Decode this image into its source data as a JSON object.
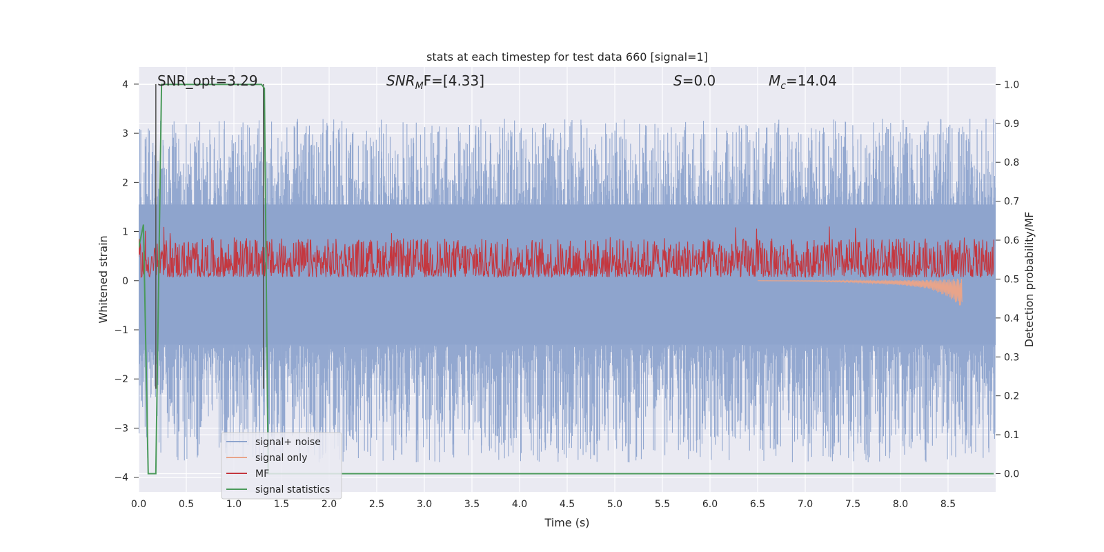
{
  "chart_data": {
    "type": "line",
    "title": "stats at each timestep for test data 660 [signal=1]",
    "xlabel": "Time (s)",
    "ylabel": "Whitened strain",
    "y2label": "Detection probability/MF",
    "xlim": [
      0.0,
      9.0
    ],
    "ylim": [
      -4.3,
      4.35
    ],
    "y2lim": [
      -0.047,
      1.045
    ],
    "xticks": [
      "0.0",
      "0.5",
      "1.0",
      "1.5",
      "2.0",
      "2.5",
      "3.0",
      "3.5",
      "4.0",
      "4.5",
      "5.0",
      "5.5",
      "6.0",
      "6.5",
      "7.0",
      "7.5",
      "8.0",
      "8.5"
    ],
    "yticks": [
      "−4",
      "−3",
      "−2",
      "−1",
      "0",
      "1",
      "2",
      "3",
      "4"
    ],
    "y2ticks": [
      "0.0",
      "0.1",
      "0.2",
      "0.3",
      "0.4",
      "0.5",
      "0.6",
      "0.7",
      "0.8",
      "0.9",
      "1.0"
    ],
    "grid": true,
    "legend_position": "lower-left",
    "annotations": {
      "snr_opt": "SNR_opt=3.29",
      "snr_mf_italic": "SNR",
      "snr_mf_sub": "M",
      "snr_mf_rest": "F=[4.33]",
      "s_italic": "S",
      "s_rest": "=0.0",
      "mc_italic": "M",
      "mc_sub": "c",
      "mc_rest": "=14.04"
    },
    "vlines_x": [
      0.18,
      1.31
    ],
    "series": [
      {
        "name": "signal+ noise",
        "color": "#8ea4cd",
        "description_values": "random noise band: upper envelope peaks ~2.5–3.3, lower envelope ~-2 to -3.7"
      },
      {
        "name": "signal only",
        "color": "#e8a48a",
        "x": [
          0.0,
          6.5,
          7.0,
          7.5,
          8.0,
          8.3,
          8.5,
          8.65
        ],
        "y": [
          0.0,
          0.0,
          -0.01,
          -0.03,
          -0.08,
          -0.15,
          -0.3,
          -0.5
        ]
      },
      {
        "name": "MF",
        "color": "#c4373f",
        "description_values": "noisy trace on right axis between ~0.5 and ~0.63"
      },
      {
        "name": "signal statistics",
        "color": "#4a9a5a",
        "x": [
          0.0,
          0.05,
          0.1,
          0.13,
          0.18,
          0.24,
          1.29,
          1.32,
          1.36,
          1.4,
          8.98
        ],
        "y2": [
          0.58,
          0.64,
          0.0,
          0.0,
          0.0,
          1.0,
          1.0,
          0.99,
          0.0,
          0.0,
          0.0
        ]
      }
    ]
  }
}
